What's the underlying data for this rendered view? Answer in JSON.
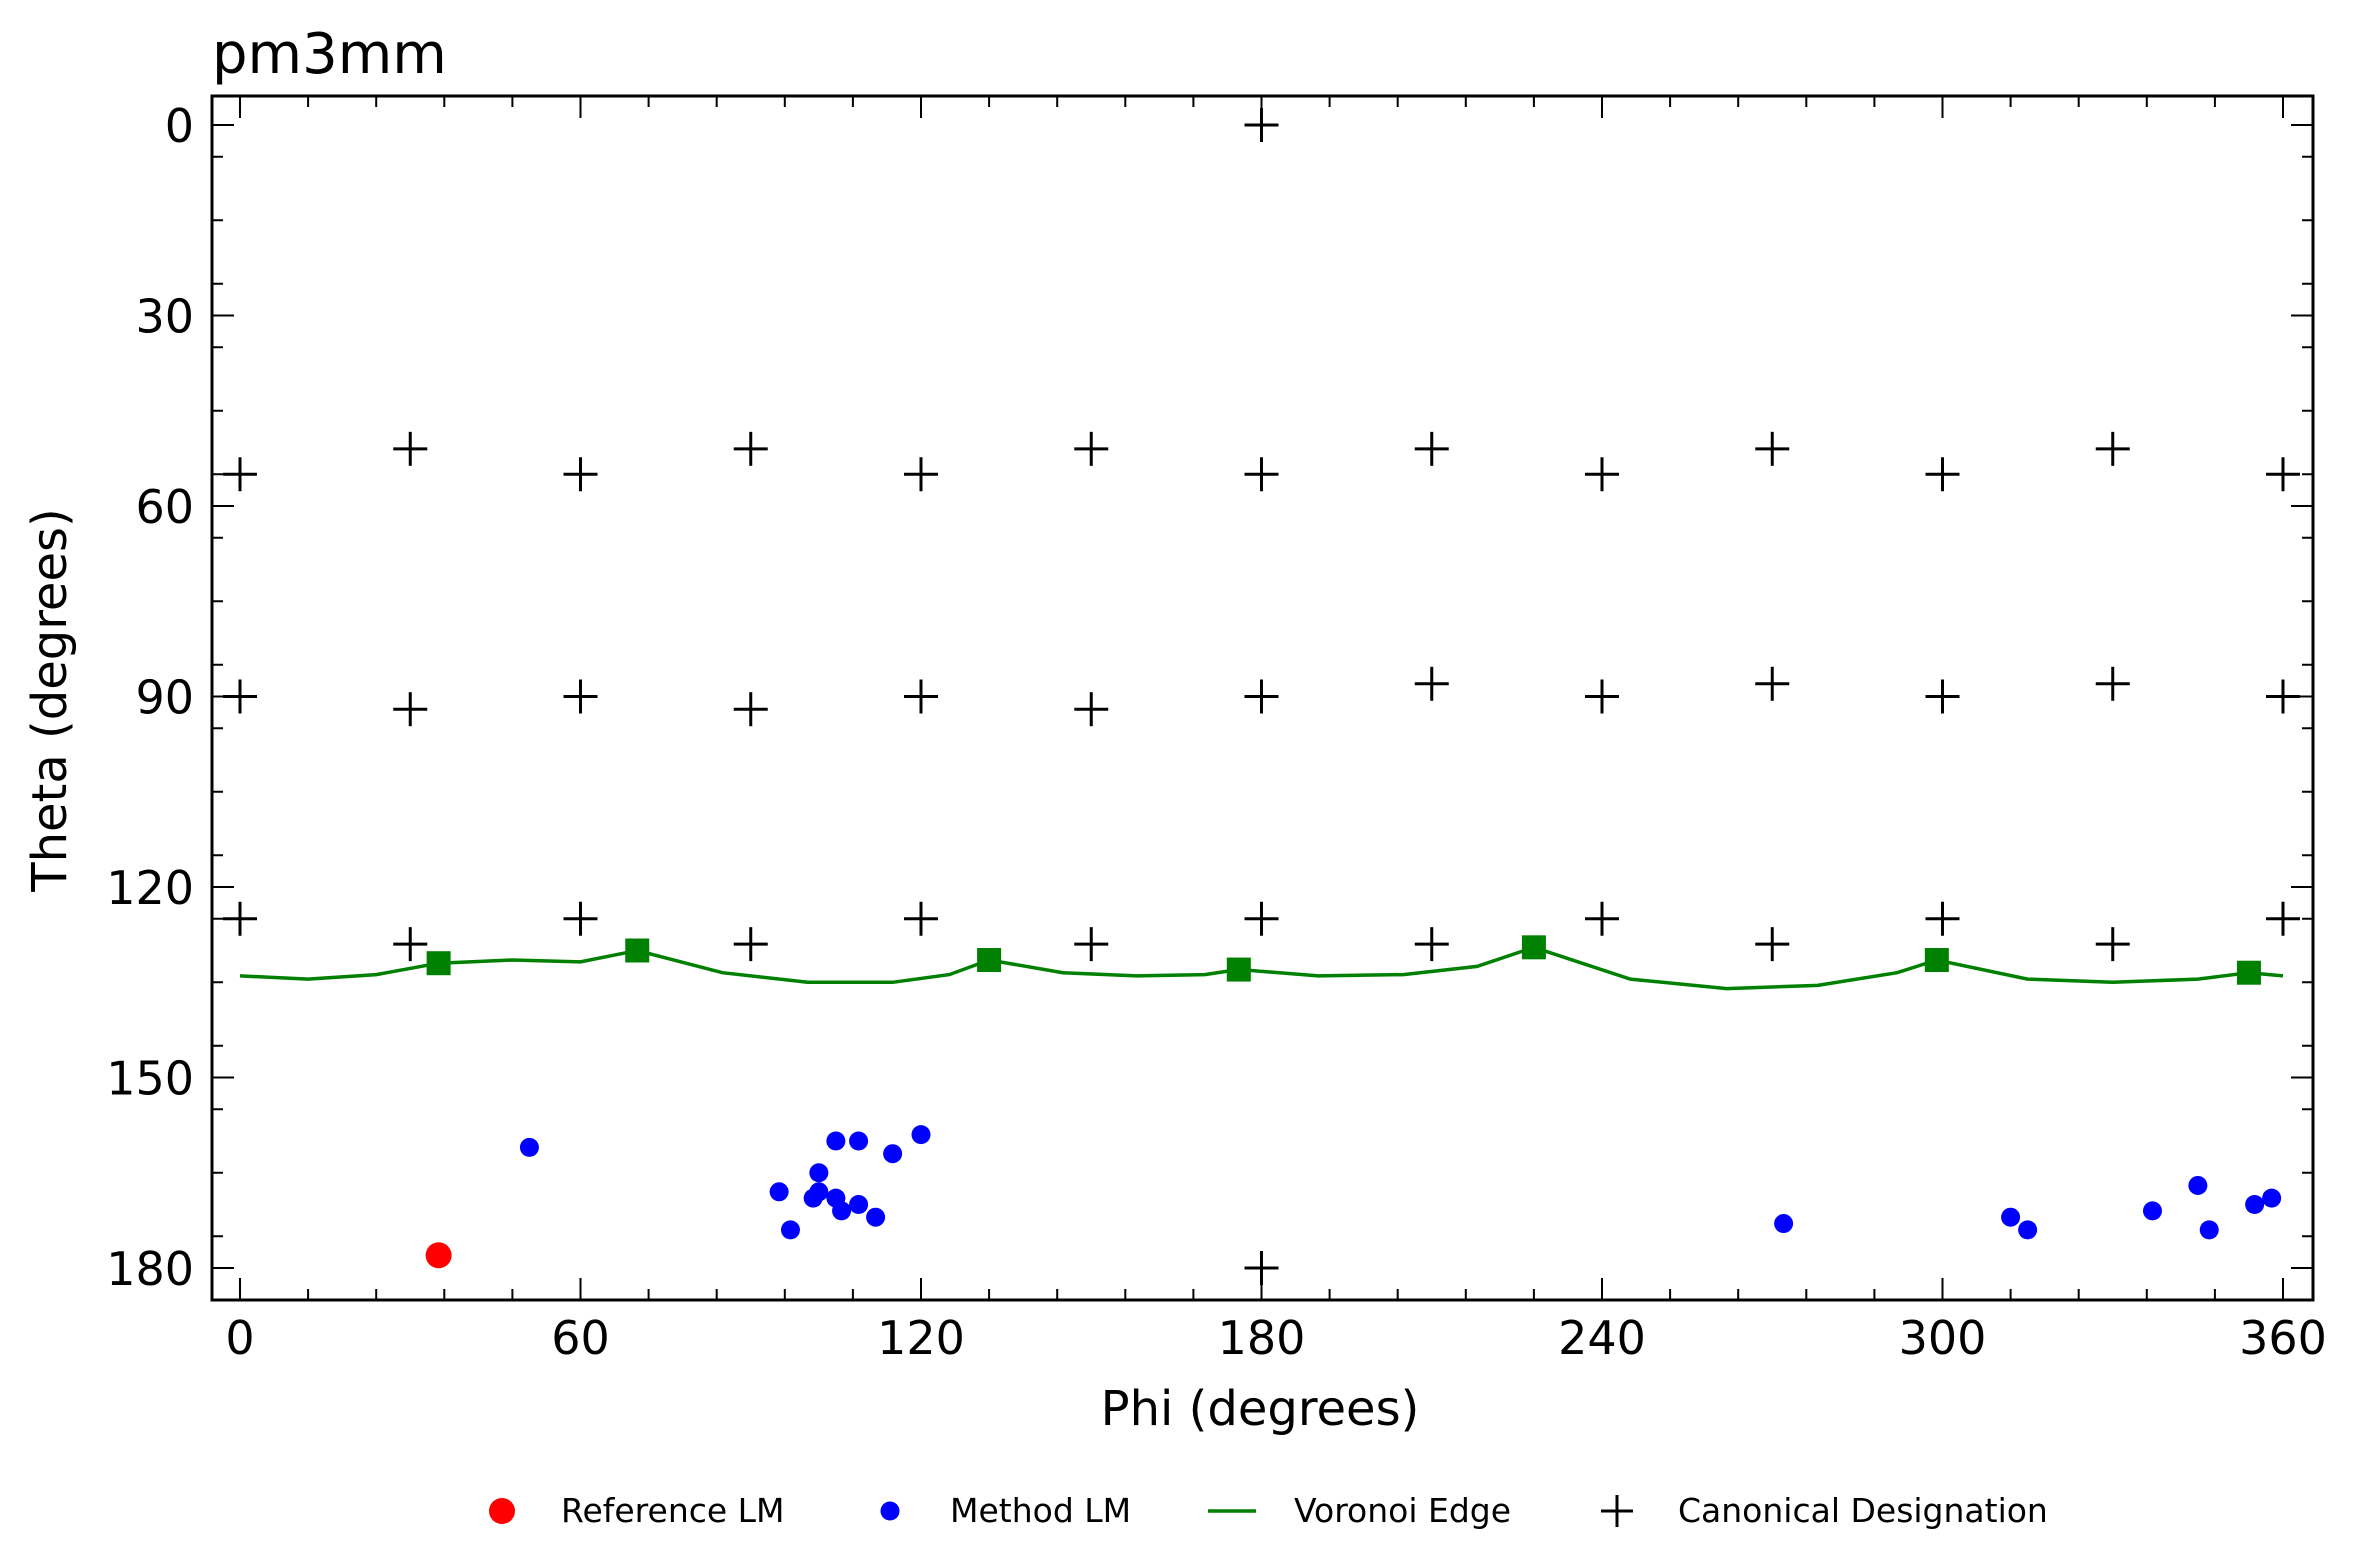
{
  "chart_data": {
    "type": "scatter",
    "title": "pm3mm",
    "xlabel": "Phi (degrees)",
    "ylabel": "Theta (degrees)",
    "xlim": [
      -4,
      362
    ],
    "ylim": [
      185,
      -5
    ],
    "y_axis_inverted": true,
    "x_ticks": [
      "0",
      "60",
      "120",
      "180",
      "240",
      "300",
      "360"
    ],
    "y_ticks": [
      "0",
      "30",
      "60",
      "90",
      "120",
      "150",
      "180"
    ],
    "grid": false,
    "legend_position": "bottom",
    "colors": {
      "reference": "#ff0000",
      "method": "#0000ff",
      "voronoi": "#008000",
      "canonical": "#000000"
    },
    "series": [
      {
        "name": "Reference LM",
        "marker": "circle",
        "points": [
          [
            35,
            178
          ]
        ]
      },
      {
        "name": "Method LM",
        "marker": "circle",
        "points": [
          [
            51,
            161
          ],
          [
            95,
            168
          ],
          [
            97,
            174
          ],
          [
            101,
            169
          ],
          [
            102,
            165
          ],
          [
            102,
            168
          ],
          [
            105,
            160
          ],
          [
            105,
            169
          ],
          [
            106,
            171
          ],
          [
            109,
            160
          ],
          [
            109,
            170
          ],
          [
            112,
            172
          ],
          [
            115,
            162
          ],
          [
            120,
            159
          ],
          [
            272,
            173
          ],
          [
            312,
            172
          ],
          [
            315,
            174
          ],
          [
            337,
            171
          ],
          [
            345,
            167
          ],
          [
            347,
            174
          ],
          [
            355,
            170
          ],
          [
            358,
            169
          ]
        ]
      },
      {
        "name": "Voronoi Edge",
        "marker": "line",
        "vertices": [
          [
            35,
            132
          ],
          [
            70,
            130
          ],
          [
            132,
            131.5
          ],
          [
            176,
            133
          ],
          [
            228,
            129.5
          ],
          [
            299,
            131.5
          ],
          [
            354,
            133.5
          ]
        ],
        "curve": [
          [
            0,
            134
          ],
          [
            12,
            134.5
          ],
          [
            24,
            133.8
          ],
          [
            35,
            132
          ],
          [
            48,
            131.5
          ],
          [
            60,
            131.8
          ],
          [
            70,
            130
          ],
          [
            85,
            133.5
          ],
          [
            100,
            135
          ],
          [
            115,
            135
          ],
          [
            125,
            133.8
          ],
          [
            132,
            131.5
          ],
          [
            145,
            133.5
          ],
          [
            158,
            134
          ],
          [
            170,
            133.8
          ],
          [
            176,
            133
          ],
          [
            190,
            134
          ],
          [
            205,
            133.8
          ],
          [
            218,
            132.5
          ],
          [
            228,
            129.5
          ],
          [
            245,
            134.5
          ],
          [
            262,
            136
          ],
          [
            278,
            135.5
          ],
          [
            292,
            133.5
          ],
          [
            299,
            131.5
          ],
          [
            315,
            134.5
          ],
          [
            330,
            135
          ],
          [
            345,
            134.5
          ],
          [
            354,
            133.5
          ],
          [
            360,
            134
          ]
        ]
      },
      {
        "name": "Canonical Designation",
        "marker": "plus",
        "points": [
          [
            180,
            0
          ],
          [
            0,
            55
          ],
          [
            30,
            51
          ],
          [
            60,
            55
          ],
          [
            90,
            51
          ],
          [
            120,
            55
          ],
          [
            150,
            51
          ],
          [
            180,
            55
          ],
          [
            210,
            51
          ],
          [
            240,
            55
          ],
          [
            270,
            51
          ],
          [
            300,
            55
          ],
          [
            330,
            51
          ],
          [
            360,
            55
          ],
          [
            0,
            90
          ],
          [
            30,
            92
          ],
          [
            60,
            90
          ],
          [
            90,
            92
          ],
          [
            120,
            90
          ],
          [
            150,
            92
          ],
          [
            180,
            90
          ],
          [
            210,
            88
          ],
          [
            240,
            90
          ],
          [
            270,
            88
          ],
          [
            300,
            90
          ],
          [
            330,
            88
          ],
          [
            360,
            90
          ],
          [
            0,
            125
          ],
          [
            30,
            129
          ],
          [
            60,
            125
          ],
          [
            90,
            129
          ],
          [
            120,
            125
          ],
          [
            150,
            129
          ],
          [
            180,
            125
          ],
          [
            210,
            129
          ],
          [
            240,
            125
          ],
          [
            270,
            129
          ],
          [
            300,
            125
          ],
          [
            330,
            129
          ],
          [
            360,
            125
          ],
          [
            180,
            180
          ]
        ]
      }
    ]
  }
}
